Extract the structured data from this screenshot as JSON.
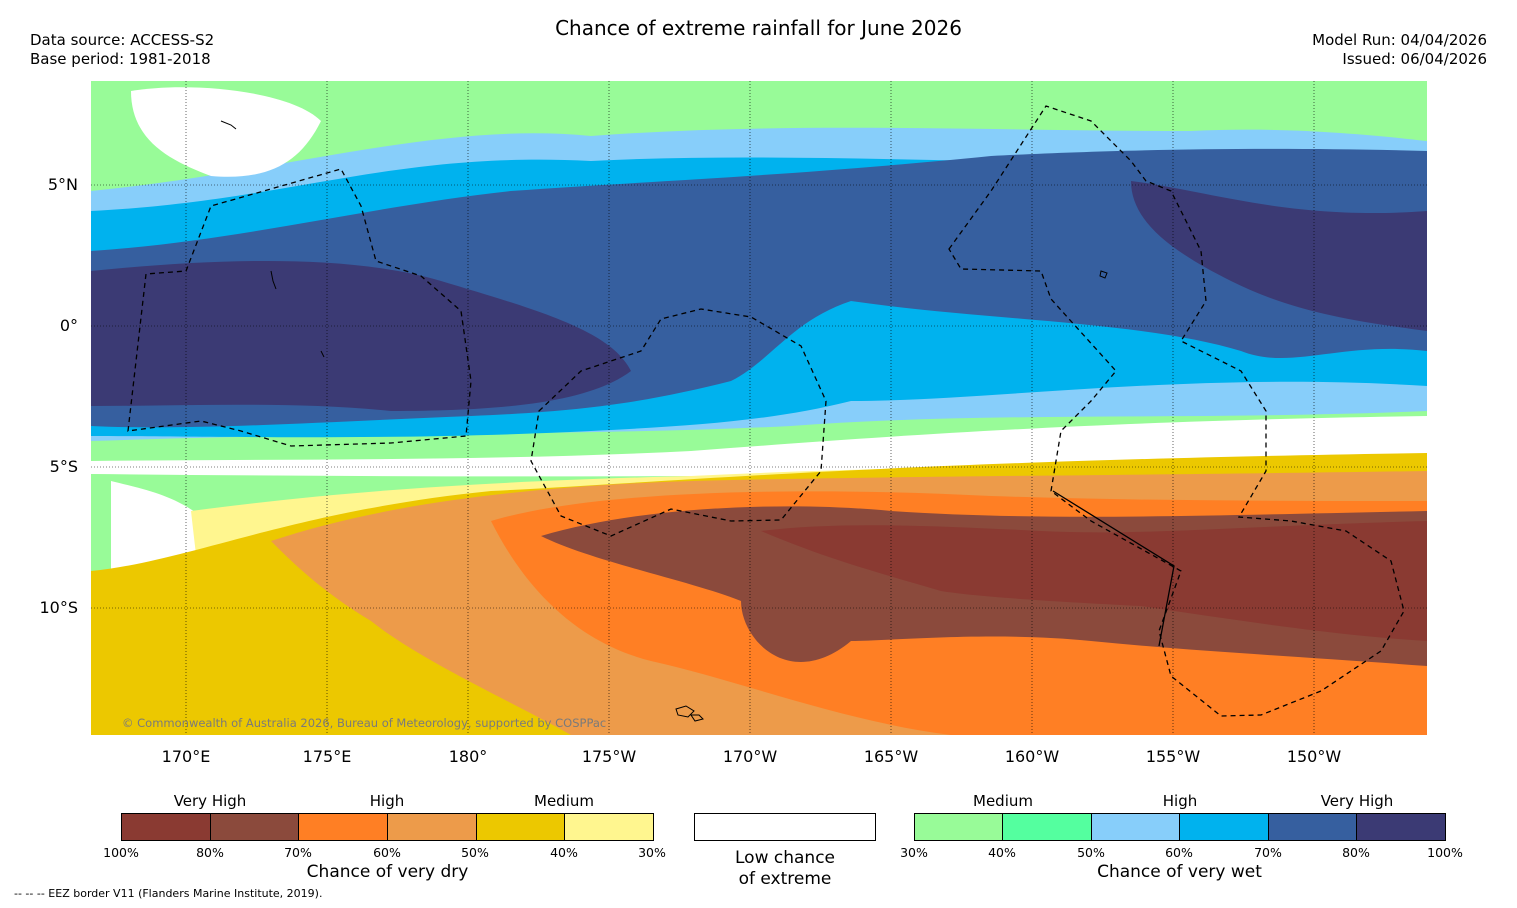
{
  "title": "Chance of extreme rainfall for June 2026",
  "meta_left": {
    "source": "Data source: ACCESS-S2",
    "base": "Base period: 1981-2018"
  },
  "meta_right": {
    "run": "Model Run: 04/04/2026",
    "issued": "Issued: 06/04/2026"
  },
  "lat_labels": [
    "5°N",
    "0°",
    "5°S",
    "10°S"
  ],
  "lon_labels": [
    "170°E",
    "175°E",
    "180°",
    "175°W",
    "170°W",
    "165°W",
    "160°W",
    "155°W",
    "150°W"
  ],
  "credit": "© Commonwealth of Australia 2026, Bureau of Meteorology, supported by COSPPac",
  "legend_dry": {
    "categories": [
      "Very High",
      "High",
      "Medium"
    ],
    "ticks": [
      "100%",
      "80%",
      "70%",
      "60%",
      "50%",
      "40%",
      "30%"
    ],
    "title": "Chance of very dry",
    "colors": [
      "#8a3a32",
      "#8b4a3c",
      "#ff7f24",
      "#ed9b4a",
      "#ecc800",
      "#fff68f"
    ]
  },
  "legend_low": {
    "line1": "Low chance",
    "line2": "of extreme"
  },
  "legend_wet": {
    "categories": [
      "Medium",
      "High",
      "Very High"
    ],
    "ticks": [
      "30%",
      "40%",
      "50%",
      "60%",
      "70%",
      "80%",
      "100%"
    ],
    "title": "Chance of very wet",
    "colors": [
      "#98fb98",
      "#54ff9f",
      "#87cefa",
      "#00b2ee",
      "#365f9f",
      "#3b3a74"
    ]
  },
  "footnote": "--  --  -- EEZ border V11 (Flanders Marine Institute, 2019)."
}
